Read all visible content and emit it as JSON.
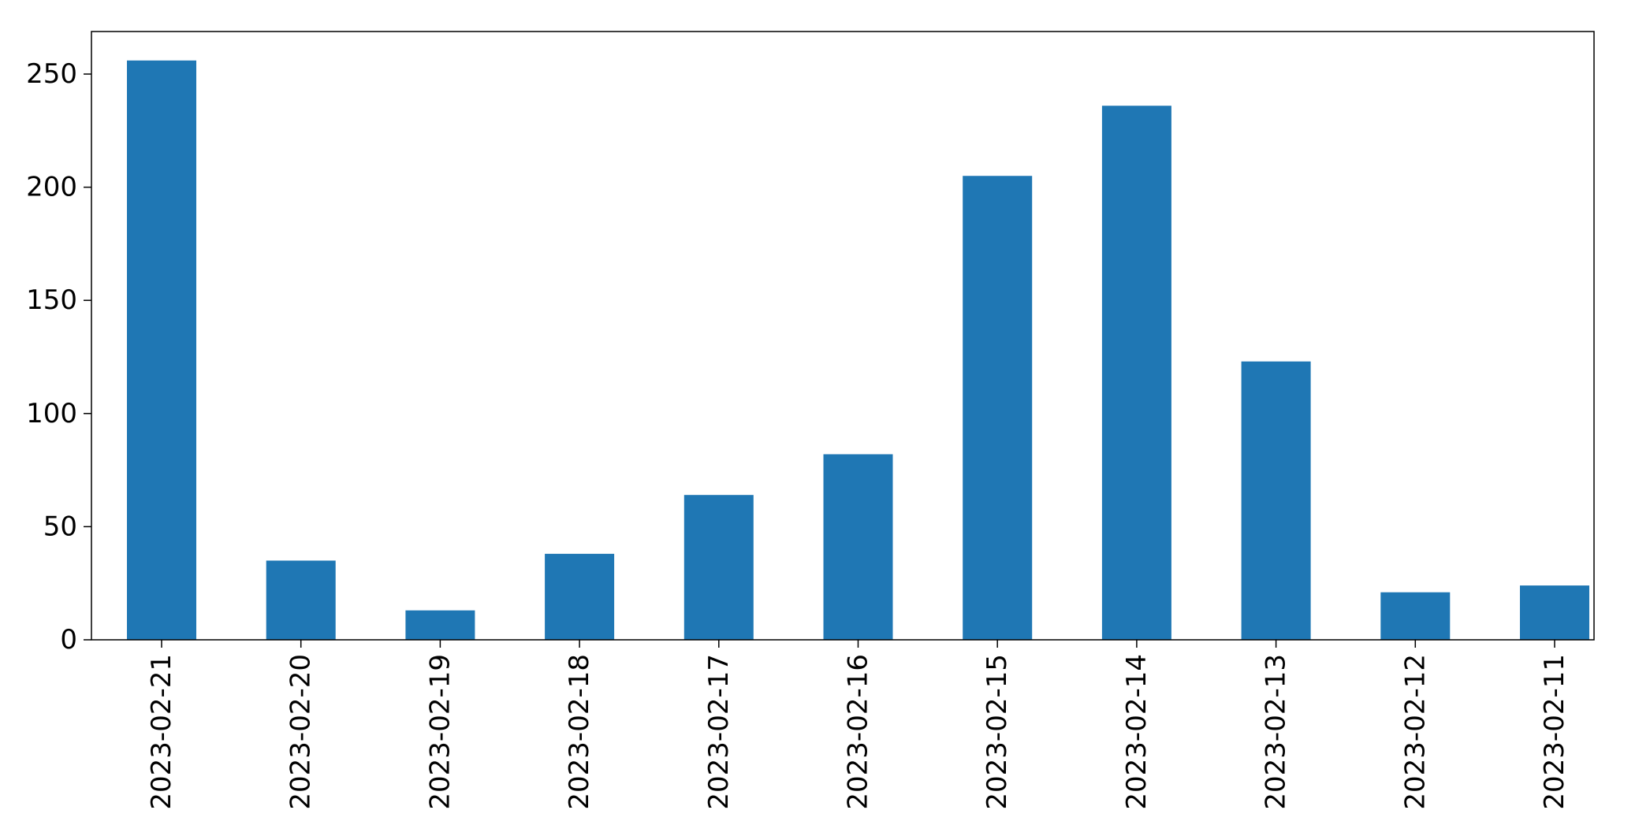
{
  "chart_data": {
    "type": "bar",
    "categories": [
      "2023-02-21",
      "2023-02-20",
      "2023-02-19",
      "2023-02-18",
      "2023-02-17",
      "2023-02-16",
      "2023-02-15",
      "2023-02-14",
      "2023-02-13",
      "2023-02-12",
      "2023-02-11"
    ],
    "values": [
      256,
      35,
      13,
      38,
      64,
      82,
      205,
      236,
      123,
      21,
      24
    ],
    "ylim": [
      0,
      268.8
    ],
    "yticks": [
      0,
      50,
      100,
      150,
      200,
      250
    ],
    "title": "",
    "xlabel": "",
    "ylabel": "",
    "grid": false,
    "legend": "none",
    "bar_color": "#1f77b4"
  }
}
